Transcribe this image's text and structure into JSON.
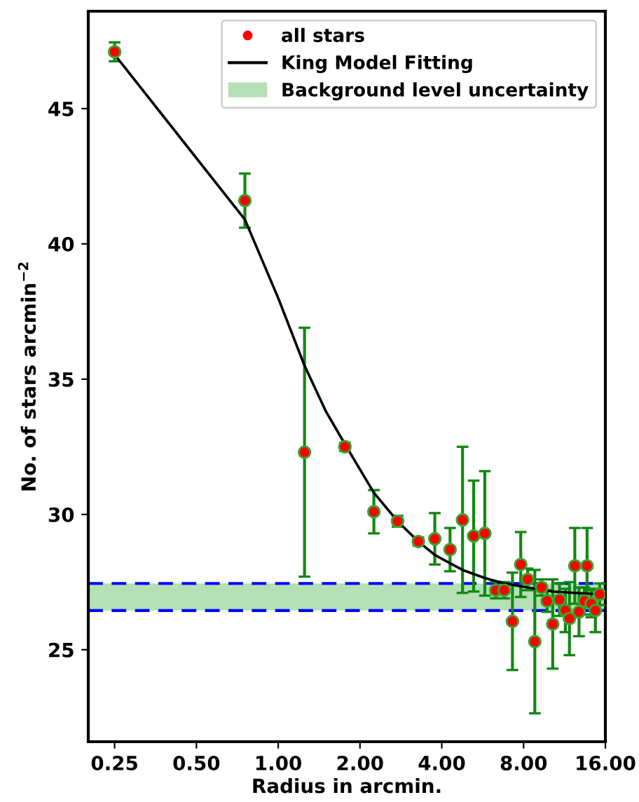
{
  "chart_data": {
    "type": "scatter",
    "xlabel": "Radius in arcmin.",
    "ylabel": "No. of stars arcmin$^{−2}$",
    "log": "x",
    "xlim": [
      0.2,
      16
    ],
    "ylim": [
      21.6,
      48.6
    ],
    "xticks": [
      {
        "value": 0.25,
        "label": "0.25"
      },
      {
        "value": 0.5,
        "label": "0.50"
      },
      {
        "value": 1,
        "label": "1.00"
      },
      {
        "value": 2,
        "label": "2.00"
      },
      {
        "value": 4,
        "label": "4.00"
      },
      {
        "value": 8,
        "label": "8.00"
      },
      {
        "value": 16,
        "label": "16.00"
      }
    ],
    "yticks": [
      25,
      30,
      35,
      40,
      45
    ],
    "grid": false,
    "legend": "top right",
    "marker": "circle",
    "series": [
      {
        "name": "all stars",
        "color": "#ff0000",
        "x": [
          0.25,
          0.754,
          1.25,
          1.76,
          2.25,
          2.75,
          3.28,
          3.77,
          4.29,
          4.77,
          5.24,
          5.76,
          6.32,
          6.79,
          7.28,
          7.81,
          8.28,
          8.8,
          9.32,
          9.77,
          10.24,
          10.85,
          11.4,
          11.8,
          12.35,
          12.8,
          13.4,
          13.7,
          14.2,
          14.7,
          15.25
        ],
        "values": [
          47.1,
          41.6,
          32.3,
          32.5,
          30.1,
          29.75,
          29.0,
          29.1,
          28.7,
          29.8,
          29.2,
          29.3,
          27.2,
          27.2,
          26.05,
          28.15,
          27.6,
          25.3,
          27.3,
          26.8,
          25.95,
          26.85,
          26.45,
          26.15,
          28.1,
          26.4,
          26.8,
          28.1,
          26.7,
          26.45,
          27.05
        ],
        "errors": [
          0.35,
          1.0,
          4.6,
          0.15,
          0.8,
          0.2,
          0.15,
          0.95,
          0.8,
          2.7,
          2.05,
          2.3,
          0.3,
          0.3,
          1.8,
          1.2,
          0.4,
          2.65,
          0.3,
          0.4,
          1.65,
          0.6,
          0.8,
          1.35,
          1.4,
          0.9,
          0.5,
          1.4,
          0.5,
          0.8,
          0.4
        ]
      },
      {
        "name": "King Model Fitting",
        "type": "line",
        "color": "#000000",
        "line_style": "solid",
        "marker": "none",
        "x": [
          0.25,
          0.754,
          1.0,
          1.25,
          1.5,
          1.76,
          2.25,
          2.75,
          3.28,
          3.77,
          4.29,
          4.77,
          5.76,
          6.79,
          8.28,
          10.24,
          12.35,
          15.25
        ],
        "values": [
          47.0,
          40.9,
          38.0,
          35.5,
          33.8,
          32.6,
          30.8,
          29.75,
          29.0,
          28.5,
          28.2,
          27.95,
          27.65,
          27.45,
          27.3,
          27.15,
          27.1,
          27.05
        ]
      }
    ],
    "bands": [
      {
        "axis": "y",
        "from": 26.45,
        "to": 27.45,
        "label": "Background level uncertainty",
        "color": "#b5dfb5"
      }
    ],
    "ref_lines": [
      {
        "axis": "y",
        "value": 27.45,
        "color": "#0000ff",
        "line_style": "dashed"
      },
      {
        "axis": "y",
        "value": 26.45,
        "color": "#0000ff",
        "line_style": "dashed"
      }
    ]
  }
}
